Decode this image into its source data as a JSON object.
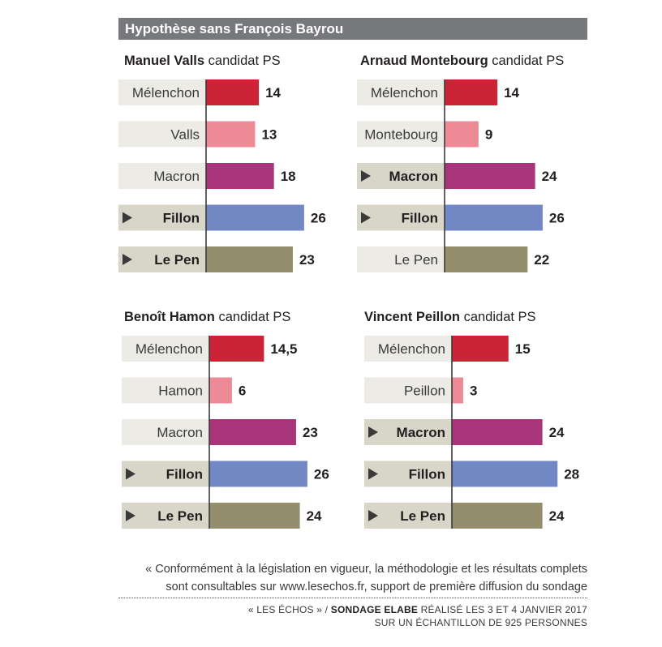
{
  "header": {
    "title": "Hypothèse sans François Bayrou"
  },
  "colors": {
    "Mélenchon": "#cc2336",
    "candidate_ps": "#ee8a95",
    "Macron": "#a8357a",
    "Fillon": "#7188c4",
    "Le Pen": "#948e6d",
    "label_bg": "#ecebe6",
    "label_bg_highlight": "#d8d5c9"
  },
  "chart_data": [
    {
      "type": "bar",
      "title_name": "Manuel Valls",
      "title_role": "candidat PS",
      "categories": [
        "Mélenchon",
        "Valls",
        "Macron",
        "Fillon",
        "Le Pen"
      ],
      "values": [
        14,
        13,
        18,
        26,
        23
      ],
      "value_labels": [
        "14",
        "13",
        "18",
        "26",
        "23"
      ],
      "highlighted": [
        false,
        false,
        false,
        true,
        true
      ]
    },
    {
      "type": "bar",
      "title_name": "Arnaud Montebourg",
      "title_role": "candidat PS",
      "categories": [
        "Mélenchon",
        "Montebourg",
        "Macron",
        "Fillon",
        "Le Pen"
      ],
      "values": [
        14,
        9,
        24,
        26,
        22
      ],
      "value_labels": [
        "14",
        "9",
        "24",
        "26",
        "22"
      ],
      "highlighted": [
        false,
        false,
        true,
        true,
        false
      ]
    },
    {
      "type": "bar",
      "title_name": "Benoît Hamon",
      "title_role": "candidat PS",
      "categories": [
        "Mélenchon",
        "Hamon",
        "Macron",
        "Fillon",
        "Le Pen"
      ],
      "values": [
        14.5,
        6,
        23,
        26,
        24
      ],
      "value_labels": [
        "14,5",
        "6",
        "23",
        "26",
        "24"
      ],
      "highlighted": [
        false,
        false,
        false,
        true,
        true
      ]
    },
    {
      "type": "bar",
      "title_name": "Vincent Peillon",
      "title_role": "candidat PS",
      "categories": [
        "Mélenchon",
        "Peillon",
        "Macron",
        "Fillon",
        "Le Pen"
      ],
      "values": [
        15,
        3,
        24,
        28,
        24
      ],
      "value_labels": [
        "15",
        "3",
        "24",
        "28",
        "24"
      ],
      "highlighted": [
        false,
        false,
        true,
        true,
        true
      ]
    }
  ],
  "note": {
    "line1": "« Conformément à la législation en vigueur, la méthodologie et les résultats complets",
    "line2": "sont consultables sur www.lesechos.fr, support de première diffusion du sondage"
  },
  "source": {
    "pub": "« LES ÉCHOS » / ",
    "org": "SONDAGE ELABE",
    "rest": " RÉALISÉ LES 3 ET 4 JANVIER 2017",
    "line2": "SUR UN ÉCHANTILLON DE 925 PERSONNES"
  }
}
